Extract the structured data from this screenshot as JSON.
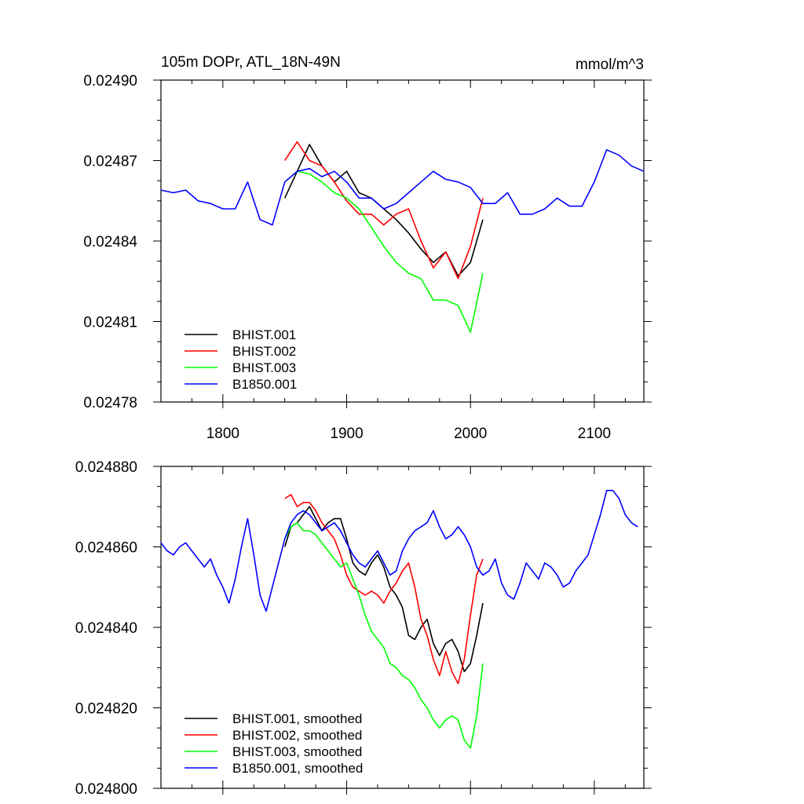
{
  "chart_data": [
    {
      "type": "line",
      "title": "105m DOPr, ATL_18N-49N",
      "units": "mmol/m^3",
      "xlim": [
        1750,
        2140
      ],
      "ylim": [
        0.02478,
        0.0249
      ],
      "xticks": [
        1800,
        1900,
        2000,
        2100
      ],
      "xticklabels": [
        "1800",
        "1900",
        "2000",
        "2100"
      ],
      "yticks": [
        0.02478,
        0.02481,
        0.02484,
        0.02487,
        0.0249
      ],
      "yticklabels": [
        "0.02478",
        "0.02481",
        "0.02484",
        "0.02487",
        "0.02490"
      ],
      "legend_position": "bottom-left",
      "series": [
        {
          "name": "BHIST.001",
          "color": "#000000",
          "x": [
            1850,
            1860,
            1870,
            1880,
            1890,
            1900,
            1910,
            1920,
            1930,
            1940,
            1950,
            1960,
            1970,
            1980,
            1990,
            2000,
            2010
          ],
          "y": [
            0.024856,
            0.024866,
            0.024876,
            0.024868,
            0.024862,
            0.024866,
            0.024858,
            0.024856,
            0.024852,
            0.024848,
            0.024843,
            0.024837,
            0.024832,
            0.024836,
            0.024827,
            0.024832,
            0.024848
          ]
        },
        {
          "name": "BHIST.002",
          "color": "#ff0000",
          "x": [
            1850,
            1860,
            1870,
            1880,
            1890,
            1900,
            1910,
            1920,
            1930,
            1940,
            1950,
            1960,
            1970,
            1980,
            1990,
            2000,
            2010
          ],
          "y": [
            0.02487,
            0.024877,
            0.02487,
            0.024868,
            0.024862,
            0.024855,
            0.02485,
            0.02485,
            0.024846,
            0.02485,
            0.024852,
            0.02484,
            0.02483,
            0.024836,
            0.024826,
            0.024838,
            0.024856
          ]
        },
        {
          "name": "BHIST.003",
          "color": "#00ff00",
          "x": [
            1850,
            1860,
            1870,
            1880,
            1890,
            1900,
            1910,
            1920,
            1930,
            1940,
            1950,
            1960,
            1970,
            1980,
            1990,
            2000,
            2010
          ],
          "y": [
            0.024862,
            0.024866,
            0.024865,
            0.024862,
            0.024858,
            0.024856,
            0.024852,
            0.024845,
            0.024838,
            0.024832,
            0.024828,
            0.024826,
            0.024818,
            0.024818,
            0.024816,
            0.024806,
            0.024828
          ]
        },
        {
          "name": "B1850.001",
          "color": "#0000ff",
          "x": [
            1750,
            1760,
            1770,
            1780,
            1790,
            1800,
            1810,
            1820,
            1830,
            1840,
            1850,
            1860,
            1870,
            1880,
            1890,
            1900,
            1910,
            1920,
            1930,
            1940,
            1950,
            1960,
            1970,
            1980,
            1990,
            2000,
            2010,
            2020,
            2030,
            2040,
            2050,
            2060,
            2070,
            2080,
            2090,
            2100,
            2110,
            2120,
            2130,
            2140
          ],
          "y": [
            0.024859,
            0.024858,
            0.024859,
            0.024855,
            0.024854,
            0.024852,
            0.024852,
            0.024862,
            0.024848,
            0.024846,
            0.024862,
            0.024866,
            0.024867,
            0.024864,
            0.024866,
            0.024862,
            0.024856,
            0.024856,
            0.024852,
            0.024854,
            0.024858,
            0.024862,
            0.024866,
            0.024863,
            0.024862,
            0.02486,
            0.024854,
            0.024854,
            0.024858,
            0.02485,
            0.02485,
            0.024852,
            0.024856,
            0.024853,
            0.024853,
            0.024862,
            0.024874,
            0.024872,
            0.024868,
            0.024866
          ]
        }
      ]
    },
    {
      "type": "line",
      "title": "",
      "xlim": [
        1750,
        2140
      ],
      "ylim": [
        0.0248,
        0.02488
      ],
      "yticks": [
        0.0248,
        0.02482,
        0.02484,
        0.02486,
        0.02488
      ],
      "yticklabels": [
        "0.024800",
        "0.024820",
        "0.024840",
        "0.024860",
        "0.024880"
      ],
      "legend_position": "bottom-left",
      "series": [
        {
          "name": "BHIST.001, smoothed",
          "color": "#000000",
          "x": [
            1850,
            1855,
            1860,
            1865,
            1870,
            1875,
            1880,
            1885,
            1890,
            1895,
            1900,
            1905,
            1910,
            1915,
            1920,
            1925,
            1930,
            1935,
            1940,
            1945,
            1950,
            1955,
            1960,
            1965,
            1970,
            1975,
            1980,
            1985,
            1990,
            1995,
            2000,
            2005,
            2010
          ],
          "y": [
            0.02486,
            0.024865,
            0.024866,
            0.024868,
            0.02487,
            0.024867,
            0.024864,
            0.024866,
            0.024867,
            0.024867,
            0.024862,
            0.024856,
            0.024854,
            0.024853,
            0.024856,
            0.024858,
            0.024855,
            0.02485,
            0.024848,
            0.024845,
            0.024838,
            0.024837,
            0.02484,
            0.024842,
            0.024836,
            0.024833,
            0.024836,
            0.024837,
            0.024834,
            0.024829,
            0.024831,
            0.024838,
            0.024846
          ]
        },
        {
          "name": "BHIST.002, smoothed",
          "color": "#ff0000",
          "x": [
            1850,
            1855,
            1860,
            1865,
            1870,
            1875,
            1880,
            1885,
            1890,
            1895,
            1900,
            1905,
            1910,
            1915,
            1920,
            1925,
            1930,
            1935,
            1940,
            1945,
            1950,
            1955,
            1960,
            1965,
            1970,
            1975,
            1980,
            1985,
            1990,
            1995,
            2000,
            2005,
            2010
          ],
          "y": [
            0.024872,
            0.024873,
            0.02487,
            0.024871,
            0.024871,
            0.024869,
            0.024866,
            0.024864,
            0.024862,
            0.024858,
            0.024853,
            0.02485,
            0.024849,
            0.024848,
            0.024849,
            0.024848,
            0.024846,
            0.024849,
            0.024851,
            0.024854,
            0.024856,
            0.02485,
            0.024842,
            0.024838,
            0.024832,
            0.024828,
            0.024834,
            0.024829,
            0.024826,
            0.024832,
            0.024843,
            0.024853,
            0.024857
          ]
        },
        {
          "name": "BHIST.003, smoothed",
          "color": "#00ff00",
          "x": [
            1850,
            1855,
            1860,
            1865,
            1870,
            1875,
            1880,
            1885,
            1890,
            1895,
            1900,
            1905,
            1910,
            1915,
            1920,
            1925,
            1930,
            1935,
            1940,
            1945,
            1950,
            1955,
            1960,
            1965,
            1970,
            1975,
            1980,
            1985,
            1990,
            1995,
            2000,
            2005,
            2010
          ],
          "y": [
            0.024862,
            0.024865,
            0.024866,
            0.024864,
            0.024864,
            0.024863,
            0.024861,
            0.024859,
            0.024857,
            0.024855,
            0.024856,
            0.024852,
            0.024848,
            0.024843,
            0.024839,
            0.024837,
            0.024835,
            0.024831,
            0.02483,
            0.024828,
            0.024827,
            0.024825,
            0.024822,
            0.02482,
            0.024817,
            0.024815,
            0.024817,
            0.024818,
            0.024817,
            0.024812,
            0.02481,
            0.024818,
            0.024831
          ]
        },
        {
          "name": "B1850.001, smoothed",
          "color": "#0000ff",
          "x": [
            1750,
            1755,
            1760,
            1765,
            1770,
            1775,
            1780,
            1785,
            1790,
            1795,
            1800,
            1805,
            1810,
            1815,
            1820,
            1825,
            1830,
            1835,
            1840,
            1845,
            1850,
            1855,
            1860,
            1865,
            1870,
            1875,
            1880,
            1885,
            1890,
            1895,
            1900,
            1905,
            1910,
            1915,
            1920,
            1925,
            1930,
            1935,
            1940,
            1945,
            1950,
            1955,
            1960,
            1965,
            1970,
            1975,
            1980,
            1985,
            1990,
            1995,
            2000,
            2005,
            2010,
            2015,
            2020,
            2025,
            2030,
            2035,
            2040,
            2045,
            2050,
            2055,
            2060,
            2065,
            2070,
            2075,
            2080,
            2085,
            2090,
            2095,
            2100,
            2105,
            2110,
            2115,
            2120,
            2125,
            2130,
            2135
          ],
          "y": [
            0.024861,
            0.024859,
            0.024858,
            0.02486,
            0.024861,
            0.024859,
            0.024857,
            0.024855,
            0.024857,
            0.024853,
            0.02485,
            0.024846,
            0.024852,
            0.02486,
            0.024867,
            0.024858,
            0.024848,
            0.024844,
            0.02485,
            0.024856,
            0.024862,
            0.024866,
            0.024868,
            0.024869,
            0.024868,
            0.024866,
            0.024864,
            0.024865,
            0.024866,
            0.024864,
            0.024861,
            0.024858,
            0.024856,
            0.024855,
            0.024857,
            0.024859,
            0.024856,
            0.024853,
            0.024854,
            0.024859,
            0.024862,
            0.024864,
            0.024865,
            0.024866,
            0.024869,
            0.024865,
            0.024862,
            0.024863,
            0.024865,
            0.024863,
            0.02486,
            0.024855,
            0.024853,
            0.024854,
            0.024857,
            0.024851,
            0.024848,
            0.024847,
            0.024851,
            0.024856,
            0.024854,
            0.024852,
            0.024856,
            0.024855,
            0.024853,
            0.02485,
            0.024851,
            0.024854,
            0.024856,
            0.024858,
            0.024863,
            0.024868,
            0.024874,
            0.024874,
            0.024872,
            0.024868,
            0.024866,
            0.024865
          ]
        }
      ]
    }
  ]
}
